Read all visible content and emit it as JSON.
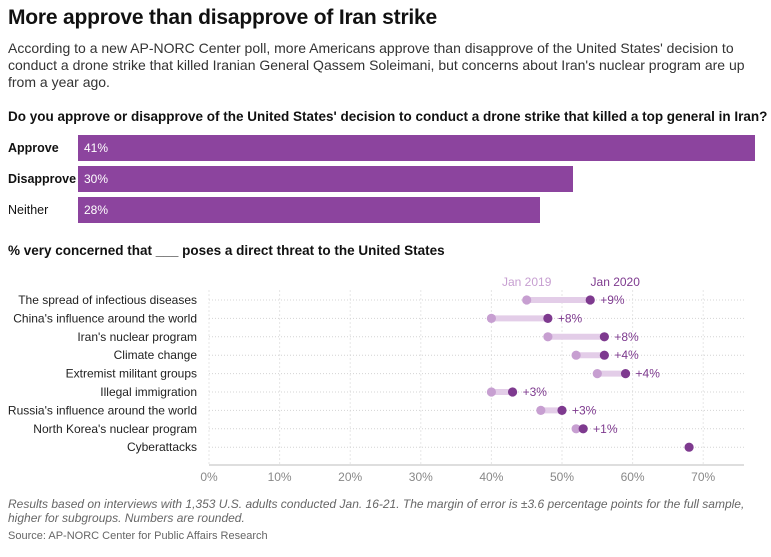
{
  "header": {
    "title": "More approve than disapprove of Iran strike",
    "subtitle": "According to a new AP-NORC Center poll, more Americans approve than disapprove of the United States' decision to conduct a drone strike that killed Iranian General Qassem Soleimani, but concerns about Iran's nuclear program are up from a year ago."
  },
  "footer": {
    "note": "Results based on interviews with 1,353 U.S. adults conducted Jan. 16-21. The margin of error is ±3.6 percentage points for the full sample, higher for subgroups. Numbers are rounded.",
    "source": "Source: AP-NORC Center for Public Affairs Research"
  },
  "colors": {
    "bar": "#8c449e",
    "jan2019": "#c79fd1",
    "jan2020": "#7e3a8f",
    "connector": "#e3cde8"
  },
  "chart_data": [
    {
      "type": "bar",
      "orientation": "horizontal",
      "title": "Do you approve or disapprove of the United States' decision to conduct a drone strike that killed a top general in Iran?",
      "categories": [
        "Approve",
        "Disapprove",
        "Neither"
      ],
      "values": [
        41,
        30,
        28
      ],
      "value_labels": [
        "41%",
        "30%",
        "28%"
      ],
      "bold_categories": [
        "Approve",
        "Disapprove"
      ]
    },
    {
      "type": "dot",
      "title": "% very concerned that ___ poses a direct threat to the United States",
      "legend": {
        "start": "Jan 2019",
        "end": "Jan 2020"
      },
      "xlim": [
        0,
        75
      ],
      "x_ticks": [
        0,
        10,
        20,
        30,
        40,
        50,
        60,
        70
      ],
      "x_tick_labels": [
        "0%",
        "10%",
        "20%",
        "30%",
        "40%",
        "50%",
        "60%",
        "70%"
      ],
      "grid": true,
      "rows": [
        {
          "label": "The spread of infectious diseases",
          "jan2019": 45,
          "jan2020": 54,
          "change": "+9%"
        },
        {
          "label": "China's influence around the world",
          "jan2019": 40,
          "jan2020": 48,
          "change": "+8%"
        },
        {
          "label": "Iran's nuclear program",
          "jan2019": 48,
          "jan2020": 56,
          "change": "+8%"
        },
        {
          "label": "Climate change",
          "jan2019": 52,
          "jan2020": 56,
          "change": "+4%"
        },
        {
          "label": "Extremist militant groups",
          "jan2019": 55,
          "jan2020": 59,
          "change": "+4%"
        },
        {
          "label": "Illegal immigration",
          "jan2019": 40,
          "jan2020": 43,
          "change": "+3%"
        },
        {
          "label": "Russia's influence around the world",
          "jan2019": 47,
          "jan2020": 50,
          "change": "+3%"
        },
        {
          "label": "North Korea's nuclear program",
          "jan2019": 52,
          "jan2020": 53,
          "change": "+1%"
        },
        {
          "label": "Cyberattacks",
          "jan2019": null,
          "jan2020": 68,
          "change": ""
        }
      ]
    }
  ]
}
